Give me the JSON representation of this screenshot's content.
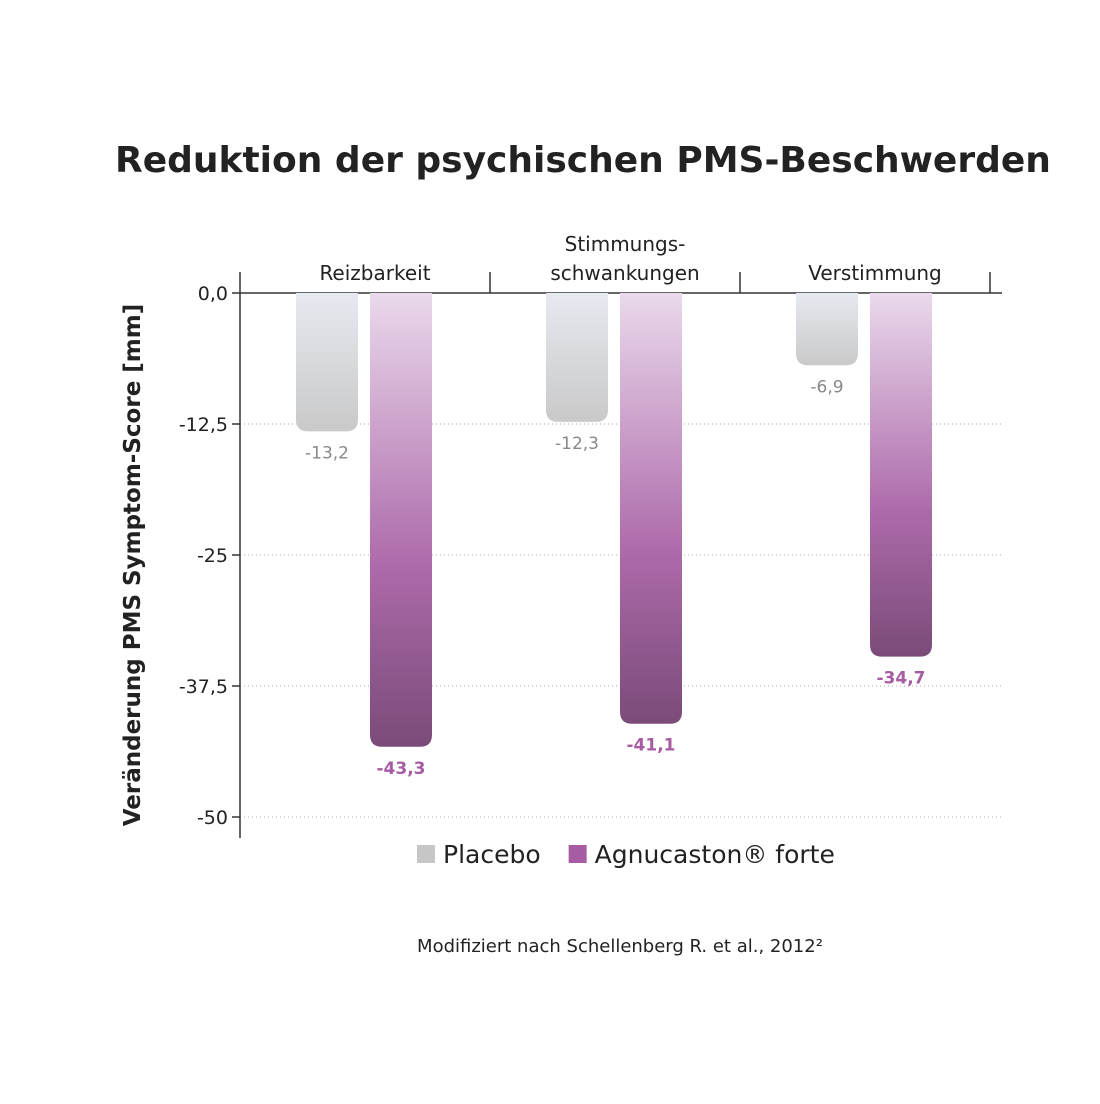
{
  "chart_data": {
    "type": "bar",
    "title": "Reduktion der psychischen PMS-Beschwerden",
    "y_label": "Veränderung PMS Symptom-Score [mm]",
    "categories": [
      "Reizbarkeit",
      "Stimmungs-\nschwankungen",
      "Verstimmung"
    ],
    "series": [
      {
        "name": "Placebo",
        "color": "#c6c6c6",
        "values": [
          -13.2,
          -12.3,
          -6.9
        ],
        "value_labels": [
          "-13,2",
          "-12,3",
          "-6,9"
        ]
      },
      {
        "name": "Agnucaston® forte",
        "color": "#a65ba3",
        "values": [
          -43.3,
          -41.1,
          -34.7
        ],
        "value_labels": [
          "-43,3",
          "-41,1",
          "-34,7"
        ]
      }
    ],
    "ylim": [
      -50,
      0
    ],
    "yticks": [
      {
        "value": 0,
        "label": "0,0"
      },
      {
        "value": -12.5,
        "label": "-12,5"
      },
      -25,
      {
        "value": -37.5,
        "label": "-37,5"
      },
      -50
    ],
    "grid": true,
    "source": "Modifiziert nach Schellenberg R. et al., 2012²"
  }
}
